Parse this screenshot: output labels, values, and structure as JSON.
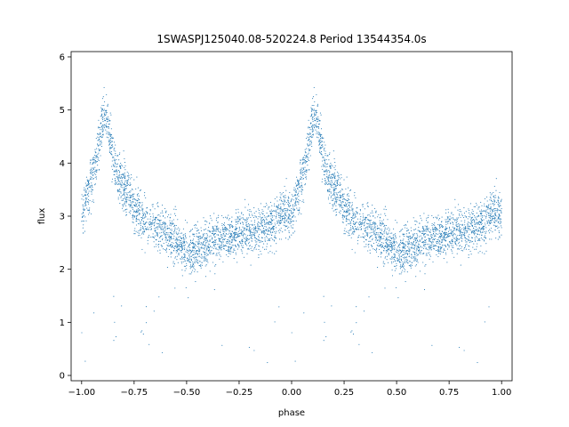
{
  "chart_data": {
    "type": "scatter",
    "title": "1SWASPJ125040.08-520224.8 Period 13544354.0s",
    "xlabel": "phase",
    "ylabel": "flux",
    "xlim": [
      -1.05,
      1.05
    ],
    "ylim": [
      -0.1,
      6.1
    ],
    "xticks": [
      -1.0,
      -0.75,
      -0.5,
      -0.25,
      0.0,
      0.25,
      0.5,
      0.75,
      1.0
    ],
    "xtick_labels": [
      "−1.00",
      "−0.75",
      "−0.50",
      "−0.25",
      "0.00",
      "0.25",
      "0.50",
      "0.75",
      "1.00"
    ],
    "yticks": [
      0,
      1,
      2,
      3,
      4,
      5,
      6
    ],
    "ytick_labels": [
      "0",
      "1",
      "2",
      "3",
      "4",
      "5",
      "6"
    ],
    "grid": false,
    "legend": "none",
    "point_color": "#1f77b4",
    "profile": {
      "description_note": "phase-folded light curve, symmetric copies at phase p and p-1",
      "phase": [
        0.0,
        0.02,
        0.04,
        0.06,
        0.08,
        0.1,
        0.12,
        0.14,
        0.16,
        0.18,
        0.2,
        0.22,
        0.25,
        0.28,
        0.32,
        0.36,
        0.4,
        0.44,
        0.48,
        0.52,
        0.56,
        0.6,
        0.64,
        0.68,
        0.72,
        0.76,
        0.8,
        0.84,
        0.88,
        0.92,
        0.96,
        1.0
      ],
      "flux": [
        3.0,
        3.3,
        3.6,
        3.9,
        4.3,
        4.8,
        4.9,
        4.3,
        3.9,
        3.7,
        3.6,
        3.5,
        3.2,
        3.0,
        2.9,
        2.8,
        2.7,
        2.6,
        2.4,
        2.3,
        2.4,
        2.5,
        2.6,
        2.6,
        2.6,
        2.7,
        2.7,
        2.7,
        2.8,
        2.9,
        3.1,
        3.0
      ]
    }
  }
}
